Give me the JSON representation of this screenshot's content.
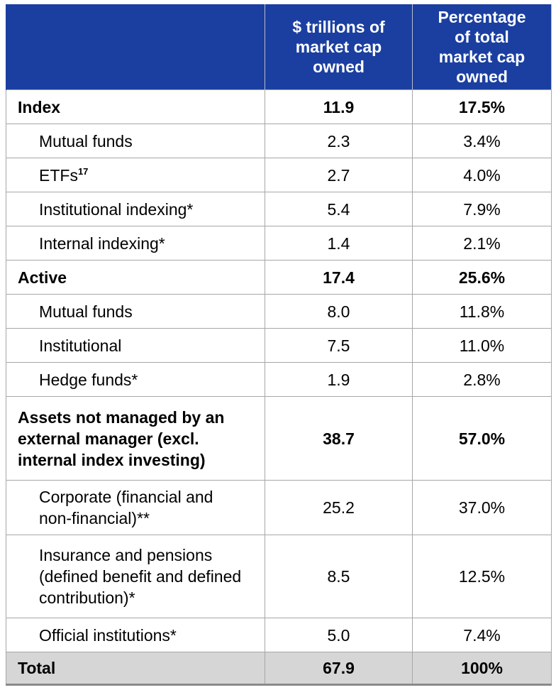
{
  "header": {
    "col1": "",
    "col2": "$ trillions of market cap owned",
    "col3": "Percentage of total market cap owned"
  },
  "rows": [
    {
      "label": "Index",
      "footnote": "",
      "value": "11.9",
      "pct": "17.5%"
    },
    {
      "label": "Mutual funds",
      "footnote": "",
      "value": "2.3",
      "pct": "3.4%"
    },
    {
      "label": "ETFs",
      "footnote": "17",
      "value": "2.7",
      "pct": "4.0%"
    },
    {
      "label": "Institutional indexing*",
      "footnote": "",
      "value": "5.4",
      "pct": "7.9%"
    },
    {
      "label": "Internal indexing*",
      "footnote": "",
      "value": "1.4",
      "pct": "2.1%"
    },
    {
      "label": "Active",
      "footnote": "",
      "value": "17.4",
      "pct": "25.6%"
    },
    {
      "label": "Mutual funds",
      "footnote": "",
      "value": "8.0",
      "pct": "11.8%"
    },
    {
      "label": "Institutional",
      "footnote": "",
      "value": "7.5",
      "pct": "11.0%"
    },
    {
      "label": "Hedge funds*",
      "footnote": "",
      "value": "1.9",
      "pct": "2.8%"
    },
    {
      "label": "Assets not managed by an external manager (excl. internal index investing)",
      "footnote": "",
      "value": "38.7",
      "pct": "57.0%"
    },
    {
      "label": "Corporate (financial and non-financial)**",
      "footnote": "",
      "value": "25.2",
      "pct": "37.0%"
    },
    {
      "label": "Insurance and pensions (defined benefit and defined contribution)*",
      "footnote": "",
      "value": "8.5",
      "pct": "12.5%"
    },
    {
      "label": "Official institutions*",
      "footnote": "",
      "value": "5.0",
      "pct": "7.4%"
    },
    {
      "label": "Total",
      "footnote": "",
      "value": "67.9",
      "pct": "100%"
    }
  ],
  "colors": {
    "header_bg": "#1b3fa0",
    "header_text": "#ffffff",
    "total_bg": "#d6d6d6",
    "grid": "#a7a7a7"
  }
}
